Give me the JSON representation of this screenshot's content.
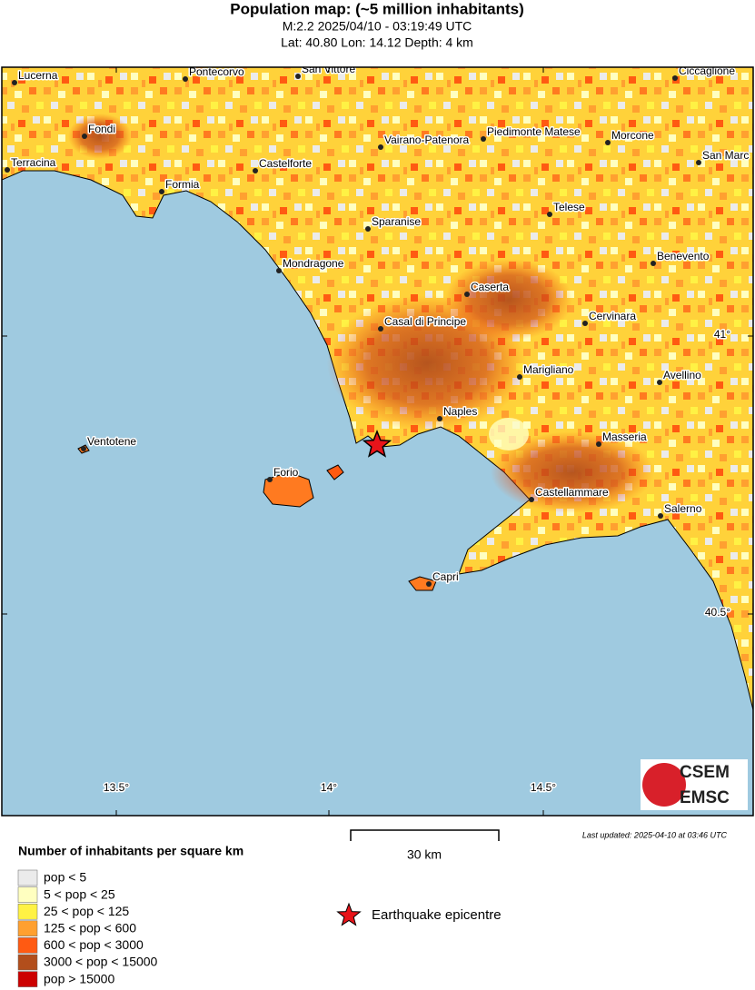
{
  "header": {
    "title": "Population map: (~5 million inhabitants)",
    "subtitle": "M:2.2 2025/04/10 - 03:19:49 UTC",
    "location": "Lat: 40.80 Lon: 14.12 Depth: 4 km"
  },
  "map": {
    "cities": [
      "Lucerna",
      "Pontecorvo",
      "San Vittore",
      "Ciccaglione",
      "Fondi",
      "Terracina",
      "Castelforte",
      "Vairano-Patenora",
      "Piedimonte Matese",
      "Morcone",
      "San Marc",
      "Formia",
      "Telese",
      "Sparanise",
      "Benevento",
      "Mondragone",
      "Caserta",
      "Casal di Principe",
      "Cervinara",
      "Marigliano",
      "Avellino",
      "Naples",
      "Ventotene",
      "Masseria",
      "Forio",
      "Castellammare",
      "Salerno",
      "Capri"
    ],
    "lat_labels": [
      "41°",
      "40.5°"
    ],
    "lon_labels": [
      "13.5°",
      "14°",
      "14.5°"
    ],
    "scale_label": "30 km",
    "last_updated": "Last updated: 2025-04-10 at 03:46 UTC",
    "logo": [
      "CSEM",
      "EMSC"
    ]
  },
  "legend": {
    "title": "Number of inhabitants per square km",
    "items": [
      {
        "label": "pop < 5",
        "color": "#ebebeb"
      },
      {
        "label": "5 < pop < 25",
        "color": "#ffffc0"
      },
      {
        "label": "25 < pop < 125",
        "color": "#fff244"
      },
      {
        "label": "125 < pop < 600",
        "color": "#ffa030"
      },
      {
        "label": "600 < pop < 3000",
        "color": "#ff5a12"
      },
      {
        "label": "3000 < pop < 15000",
        "color": "#b24e1c"
      },
      {
        "label": "pop > 15000",
        "color": "#cc0000"
      }
    ],
    "epicentre": "Earthquake epicentre"
  }
}
